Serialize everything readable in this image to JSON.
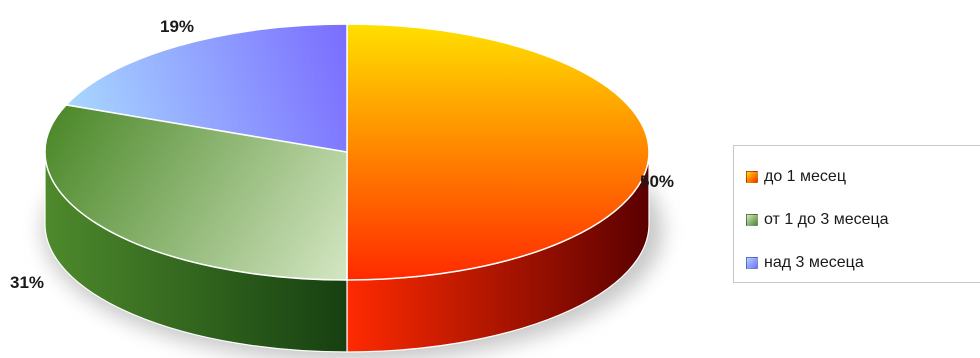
{
  "chart_data": {
    "type": "pie",
    "title": "",
    "slices": [
      {
        "label": "до 1 месец",
        "value": 50,
        "display": "50%",
        "color": "#ff2a00",
        "color_light": "#ffe000",
        "color_dark": "#5a0000",
        "label_position": "right"
      },
      {
        "label": "от 1 до 3 месеца",
        "value": 31,
        "display": "31%",
        "color": "#4e8a2c",
        "color_light": "#d4e6c2",
        "color_dark": "#164010",
        "label_position": "bottom-left"
      },
      {
        "label": "над 3 месеца",
        "value": 19,
        "display": "19%",
        "color": "#7a6cff",
        "color_light": "#a8d8ff",
        "color_dark": "#2a2280",
        "label_position": "top"
      }
    ],
    "legend_position": "right",
    "style": "3d-pie"
  }
}
